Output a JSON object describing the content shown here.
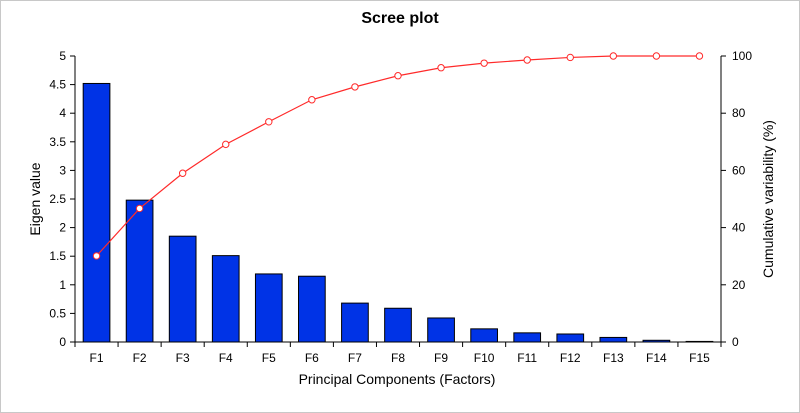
{
  "chart_data": {
    "type": "bar",
    "title": "Scree plot",
    "xlabel": "Principal Components (Factors)",
    "ylabel": "Eigen value",
    "y2label": "Cumulative variability (%)",
    "categories": [
      "F1",
      "F2",
      "F3",
      "F4",
      "F5",
      "F6",
      "F7",
      "F8",
      "F9",
      "F10",
      "F11",
      "F12",
      "F13",
      "F14",
      "F15"
    ],
    "ylim": [
      0,
      5
    ],
    "yticks": [
      "0",
      "0.5",
      "1",
      "1.5",
      "2",
      "2.5",
      "3",
      "3.5",
      "4",
      "4.5",
      "5"
    ],
    "y2lim": [
      0,
      100
    ],
    "y2ticks": [
      "0",
      "20",
      "40",
      "60",
      "80",
      "100"
    ],
    "series": [
      {
        "type": "bar",
        "axis": "left",
        "values": [
          4.52,
          2.48,
          1.85,
          1.51,
          1.19,
          1.15,
          0.68,
          0.59,
          0.42,
          0.23,
          0.16,
          0.14,
          0.08,
          0.03,
          0.01
        ],
        "color": "#0033e6"
      },
      {
        "type": "line",
        "axis": "right",
        "values": [
          30.1,
          46.7,
          59.0,
          69.1,
          77.0,
          84.7,
          89.2,
          93.1,
          95.9,
          97.5,
          98.6,
          99.5,
          100.0,
          100.0,
          100.0
        ],
        "color": "#ff2a2a"
      }
    ],
    "grid": false,
    "legend": "none"
  }
}
